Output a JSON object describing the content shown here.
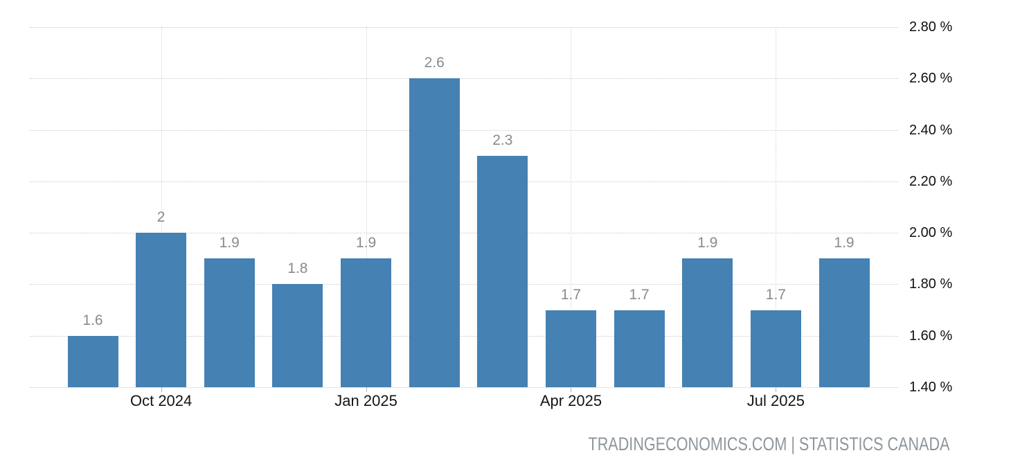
{
  "chart_data": {
    "type": "bar",
    "bar_color": "#4581b2",
    "grid": "dotted",
    "legend": "none",
    "ylim": [
      1.4,
      2.8
    ],
    "values": [
      1.6,
      2,
      1.9,
      1.8,
      1.9,
      2.6,
      2.3,
      1.7,
      1.7,
      1.9,
      1.7,
      1.9
    ],
    "bar_labels": [
      "1.6",
      "2",
      "1.9",
      "1.8",
      "1.9",
      "2.6",
      "2.3",
      "1.7",
      "1.7",
      "1.9",
      "1.7",
      "1.9"
    ],
    "x_ticks": [
      {
        "bar_index": 1,
        "label": "Oct 2024"
      },
      {
        "bar_index": 4,
        "label": "Jan 2025"
      },
      {
        "bar_index": 7,
        "label": "Apr 2025"
      },
      {
        "bar_index": 10,
        "label": "Jul 2025"
      }
    ],
    "y_ticks": [
      {
        "value": 2.8,
        "label": "2.80 %"
      },
      {
        "value": 2.6,
        "label": "2.60 %"
      },
      {
        "value": 2.4,
        "label": "2.40 %"
      },
      {
        "value": 2.2,
        "label": "2.20 %"
      },
      {
        "value": 2.0,
        "label": "2.00 %"
      },
      {
        "value": 1.8,
        "label": "1.80 %"
      },
      {
        "value": 1.6,
        "label": "1.60 %"
      },
      {
        "value": 1.4,
        "label": "1.40 %"
      }
    ]
  },
  "attribution": {
    "text": "TRADINGECONOMICS.COM | STATISTICS CANADA"
  }
}
